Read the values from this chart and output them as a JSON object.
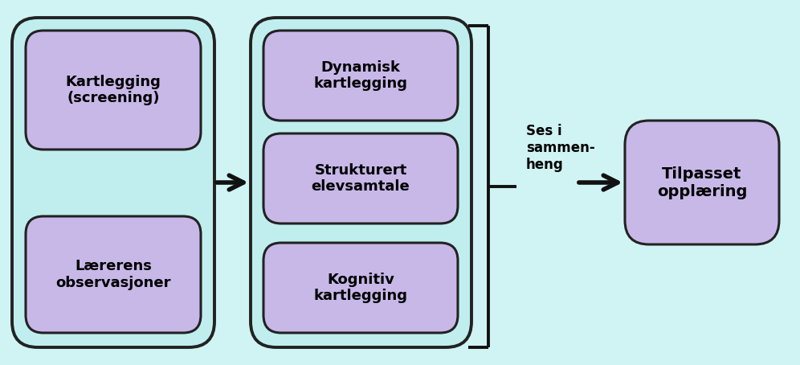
{
  "bg_color": "#d0f4f4",
  "container_color": "#c0eeee",
  "container_edge": "#222222",
  "box_fill_purple": "#c8b8e8",
  "box_edge": "#222222",
  "arrow_color": "#111111",
  "text_color": "#000000",
  "box1_label": "Kartlegging\n(screening)",
  "box2_label": "Lærerens\nobservasjoner",
  "box3_label": "Dynamisk\nkartlegging",
  "box4_label": "Strukturert\nelevsamtale",
  "box5_label": "Kognitiv\nkartlegging",
  "box6_label": "Tilpasset\nopplæring",
  "label_middle": "Ses i\nsammen-\nheng",
  "font_size_boxes": 13,
  "font_size_middle": 12,
  "xlim": [
    0,
    9.96
  ],
  "ylim": [
    0,
    4.54
  ]
}
